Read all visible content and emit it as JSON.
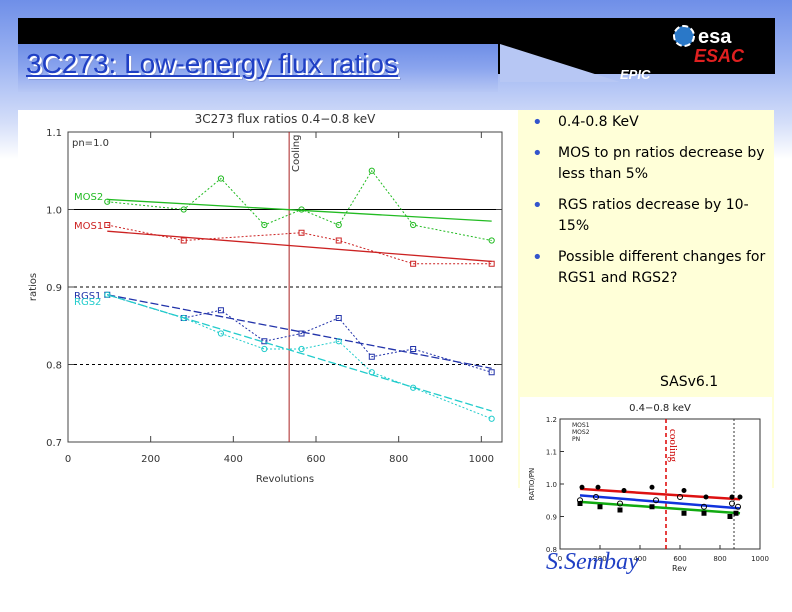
{
  "slide": {
    "title": "3C273: Low-energy flux ratios",
    "logo": {
      "brand": "esa",
      "sub": "ESAC"
    },
    "instrument_label": "EPIC",
    "bullets": [
      "0.4-0.8 KeV",
      "MOS to pn ratios decrease by less than 5%",
      "RGS ratios decrease by 10-15%",
      "Possible different changes for RGS1 and RGS2?"
    ],
    "version": "SASv6.1",
    "author": "S.Sembay"
  },
  "colors": {
    "title": "#1f3fc4",
    "panel_bg": "#ffffd8",
    "mos2": "#22bb22",
    "mos1": "#cc2222",
    "rgs1": "#2233aa",
    "rgs2": "#22cccc",
    "cooling": "#aa2222"
  },
  "chart_data": [
    {
      "type": "line",
      "title": "3C273 flux ratios 0.4−0.8 keV",
      "xlabel": "Revolutions",
      "ylabel": "ratios",
      "xlim": [
        0,
        1050
      ],
      "ylim": [
        0.7,
        1.1
      ],
      "xticks": [
        0,
        200,
        400,
        600,
        800,
        1000
      ],
      "yticks": [
        0.7,
        0.8,
        0.9,
        1.0,
        1.1
      ],
      "reference_label": "pn=1.0",
      "cooling_label": "Cooling",
      "cooling_x": 535,
      "grid_y": [
        0.8,
        0.9,
        1.0
      ],
      "series": [
        {
          "name": "MOS2",
          "x": [
            95,
            280,
            370,
            475,
            565,
            655,
            735,
            835,
            1025
          ],
          "y": [
            1.01,
            1.0,
            1.04,
            0.98,
            1.0,
            0.98,
            1.05,
            0.98,
            0.96
          ],
          "fit": [
            [
              95,
              1.013
            ],
            [
              1025,
              0.985
            ]
          ]
        },
        {
          "name": "MOS1",
          "x": [
            95,
            280,
            565,
            655,
            835,
            1025
          ],
          "y": [
            0.98,
            0.96,
            0.97,
            0.96,
            0.93,
            0.93
          ],
          "fit": [
            [
              95,
              0.972
            ],
            [
              1025,
              0.933
            ]
          ]
        },
        {
          "name": "RGS1",
          "x": [
            95,
            280,
            370,
            475,
            565,
            655,
            735,
            835,
            1025
          ],
          "y": [
            0.89,
            0.86,
            0.87,
            0.83,
            0.84,
            0.86,
            0.81,
            0.82,
            0.79
          ],
          "fit": [
            [
              95,
              0.89
            ],
            [
              1025,
              0.795
            ]
          ]
        },
        {
          "name": "RGS2",
          "x": [
            95,
            280,
            370,
            475,
            565,
            655,
            735,
            835,
            1025
          ],
          "y": [
            0.89,
            0.86,
            0.84,
            0.82,
            0.82,
            0.83,
            0.79,
            0.77,
            0.73
          ],
          "fit": [
            [
              95,
              0.89
            ],
            [
              1025,
              0.74
            ]
          ]
        }
      ]
    },
    {
      "type": "scatter",
      "title": "0.4−0.8 keV",
      "xlabel": "Rev",
      "ylabel": "RATIO/PN",
      "xlim": [
        0,
        1000
      ],
      "ylim": [
        0.8,
        1.2
      ],
      "xticks": [
        0,
        200,
        400,
        600,
        800,
        1000
      ],
      "cooling_label": "cooling",
      "cooling_x": 530,
      "dashed_x": 870,
      "legend": [
        "MOS1",
        "MOS2",
        "PN"
      ],
      "series": [
        {
          "name": "MOS1",
          "x": [
            100,
            180,
            300,
            480,
            600,
            720,
            860,
            890
          ],
          "y": [
            0.95,
            0.96,
            0.94,
            0.95,
            0.96,
            0.93,
            0.94,
            0.93
          ]
        },
        {
          "name": "MOS2",
          "x": [
            110,
            190,
            320,
            460,
            620,
            730,
            860,
            900
          ],
          "y": [
            0.99,
            0.99,
            0.98,
            0.99,
            0.98,
            0.96,
            0.96,
            0.96
          ]
        },
        {
          "name": "PN",
          "x": [
            100,
            200,
            300,
            460,
            620,
            720,
            850,
            880
          ],
          "y": [
            0.94,
            0.93,
            0.92,
            0.93,
            0.91,
            0.91,
            0.9,
            0.91
          ]
        }
      ],
      "fits": [
        {
          "name": "red",
          "from": [
            100,
            0.985
          ],
          "to": [
            900,
            0.953
          ]
        },
        {
          "name": "blue",
          "from": [
            100,
            0.965
          ],
          "to": [
            900,
            0.925
          ]
        },
        {
          "name": "green",
          "from": [
            100,
            0.945
          ],
          "to": [
            900,
            0.91
          ]
        }
      ]
    }
  ]
}
